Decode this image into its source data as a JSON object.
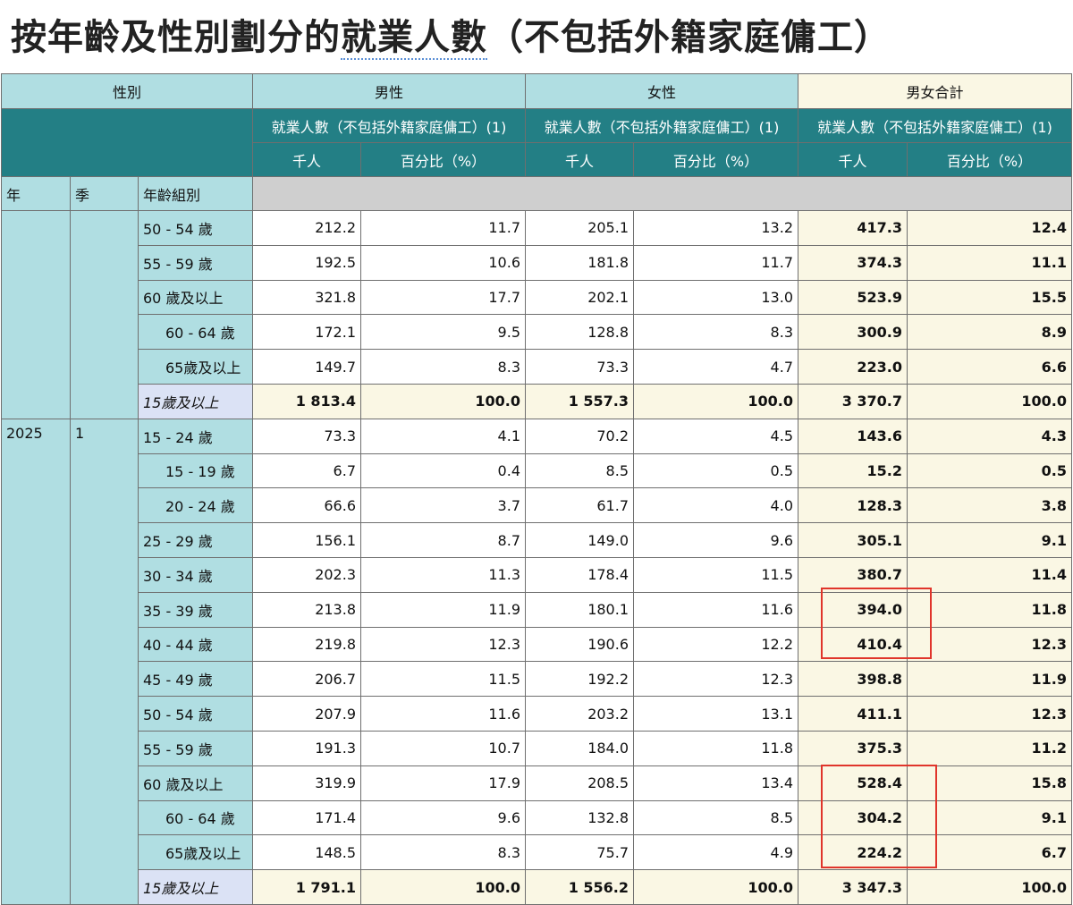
{
  "title": {
    "prefix": "按年齡及性別劃分的",
    "linked": "就業人數",
    "suffix": "（不包括外籍家庭傭工）"
  },
  "header": {
    "sex_label": "性別",
    "groups": [
      "男性",
      "女性",
      "男女合計"
    ],
    "measure": "就業人數（不包括外籍家庭傭工）(1)",
    "unit_thousand": "千人",
    "unit_percent": "百分比（%）",
    "col_year": "年",
    "col_quarter": "季",
    "col_age": "年齡組別"
  },
  "rows": [
    {
      "year": "",
      "quarter": "",
      "age": "50 - 54 歲",
      "sub": false,
      "total": false,
      "m": "212.2",
      "mp": "11.7",
      "f": "205.1",
      "fp": "13.2",
      "t": "417.3",
      "tp": "12.4"
    },
    {
      "year": "",
      "quarter": "",
      "age": "55 - 59 歲",
      "sub": false,
      "total": false,
      "m": "192.5",
      "mp": "10.6",
      "f": "181.8",
      "fp": "11.7",
      "t": "374.3",
      "tp": "11.1"
    },
    {
      "year": "",
      "quarter": "",
      "age": "60 歲及以上",
      "sub": false,
      "total": false,
      "m": "321.8",
      "mp": "17.7",
      "f": "202.1",
      "fp": "13.0",
      "t": "523.9",
      "tp": "15.5"
    },
    {
      "year": "",
      "quarter": "",
      "age": "60 - 64 歲",
      "sub": true,
      "total": false,
      "m": "172.1",
      "mp": "9.5",
      "f": "128.8",
      "fp": "8.3",
      "t": "300.9",
      "tp": "8.9"
    },
    {
      "year": "",
      "quarter": "",
      "age": "65歲及以上",
      "sub": true,
      "total": false,
      "m": "149.7",
      "mp": "8.3",
      "f": "73.3",
      "fp": "4.7",
      "t": "223.0",
      "tp": "6.6"
    },
    {
      "year": "",
      "quarter": "",
      "age": "15歲及以上",
      "sub": false,
      "total": true,
      "m": "1 813.4",
      "mp": "100.0",
      "f": "1 557.3",
      "fp": "100.0",
      "t": "3 370.7",
      "tp": "100.0"
    },
    {
      "year": "2025",
      "quarter": "1",
      "age": "15 - 24 歲",
      "sub": false,
      "total": false,
      "m": "73.3",
      "mp": "4.1",
      "f": "70.2",
      "fp": "4.5",
      "t": "143.6",
      "tp": "4.3"
    },
    {
      "year": "",
      "quarter": "",
      "age": "15 - 19 歲",
      "sub": true,
      "total": false,
      "m": "6.7",
      "mp": "0.4",
      "f": "8.5",
      "fp": "0.5",
      "t": "15.2",
      "tp": "0.5"
    },
    {
      "year": "",
      "quarter": "",
      "age": "20 - 24 歲",
      "sub": true,
      "total": false,
      "m": "66.6",
      "mp": "3.7",
      "f": "61.7",
      "fp": "4.0",
      "t": "128.3",
      "tp": "3.8"
    },
    {
      "year": "",
      "quarter": "",
      "age": "25 - 29 歲",
      "sub": false,
      "total": false,
      "m": "156.1",
      "mp": "8.7",
      "f": "149.0",
      "fp": "9.6",
      "t": "305.1",
      "tp": "9.1"
    },
    {
      "year": "",
      "quarter": "",
      "age": "30 - 34 歲",
      "sub": false,
      "total": false,
      "m": "202.3",
      "mp": "11.3",
      "f": "178.4",
      "fp": "11.5",
      "t": "380.7",
      "tp": "11.4"
    },
    {
      "year": "",
      "quarter": "",
      "age": "35 - 39 歲",
      "sub": false,
      "total": false,
      "m": "213.8",
      "mp": "11.9",
      "f": "180.1",
      "fp": "11.6",
      "t": "394.0",
      "tp": "11.8"
    },
    {
      "year": "",
      "quarter": "",
      "age": "40 - 44 歲",
      "sub": false,
      "total": false,
      "m": "219.8",
      "mp": "12.3",
      "f": "190.6",
      "fp": "12.2",
      "t": "410.4",
      "tp": "12.3"
    },
    {
      "year": "",
      "quarter": "",
      "age": "45 - 49 歲",
      "sub": false,
      "total": false,
      "m": "206.7",
      "mp": "11.5",
      "f": "192.2",
      "fp": "12.3",
      "t": "398.8",
      "tp": "11.9"
    },
    {
      "year": "",
      "quarter": "",
      "age": "50 - 54 歲",
      "sub": false,
      "total": false,
      "m": "207.9",
      "mp": "11.6",
      "f": "203.2",
      "fp": "13.1",
      "t": "411.1",
      "tp": "12.3"
    },
    {
      "year": "",
      "quarter": "",
      "age": "55 - 59 歲",
      "sub": false,
      "total": false,
      "m": "191.3",
      "mp": "10.7",
      "f": "184.0",
      "fp": "11.8",
      "t": "375.3",
      "tp": "11.2"
    },
    {
      "year": "",
      "quarter": "",
      "age": "60 歲及以上",
      "sub": false,
      "total": false,
      "m": "319.9",
      "mp": "17.9",
      "f": "208.5",
      "fp": "13.4",
      "t": "528.4",
      "tp": "15.8"
    },
    {
      "year": "",
      "quarter": "",
      "age": "60 - 64 歲",
      "sub": true,
      "total": false,
      "m": "171.4",
      "mp": "9.6",
      "f": "132.8",
      "fp": "8.5",
      "t": "304.2",
      "tp": "9.1"
    },
    {
      "year": "",
      "quarter": "",
      "age": "65歲及以上",
      "sub": true,
      "total": false,
      "m": "148.5",
      "mp": "8.3",
      "f": "75.7",
      "fp": "4.9",
      "t": "224.2",
      "tp": "6.7"
    },
    {
      "year": "",
      "quarter": "",
      "age": "15歲及以上",
      "sub": false,
      "total": true,
      "m": "1 791.1",
      "mp": "100.0",
      "f": "1 556.2",
      "fp": "100.0",
      "t": "3 347.3",
      "tp": "100.0"
    }
  ],
  "highlight_color": "#e0352b"
}
